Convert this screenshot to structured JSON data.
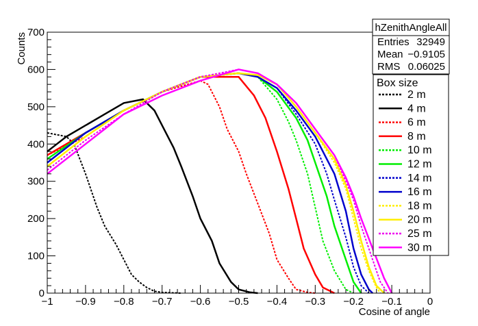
{
  "chart_data": {
    "type": "line",
    "title": "",
    "xlabel": "Cosine of angle",
    "ylabel": "Counts",
    "xlim": [
      -1,
      0
    ],
    "ylim": [
      0,
      700
    ],
    "x_ticks": [
      "-1",
      "-0.9",
      "-0.8",
      "-0.7",
      "-0.6",
      "-0.5",
      "-0.4",
      "-0.3",
      "-0.2",
      "-0.1",
      "0"
    ],
    "y_ticks": [
      "0",
      "100",
      "200",
      "300",
      "400",
      "500",
      "600",
      "700"
    ],
    "grid": false,
    "stats_box": {
      "title": "hZenithAngleAll",
      "rows": [
        {
          "label": "Entries",
          "value": "32949"
        },
        {
          "label": "Mean",
          "value": "−0.9105"
        },
        {
          "label": "RMS",
          "value": "0.06025"
        }
      ]
    },
    "legend": {
      "title": "Box size",
      "placement": "right"
    },
    "series": [
      {
        "name": "2 m",
        "color": "#000000",
        "dash": true,
        "x": [
          -1.0,
          -0.95,
          -0.93,
          -0.9,
          -0.87,
          -0.85,
          -0.82,
          -0.8,
          -0.78,
          -0.76,
          -0.74,
          -0.72,
          -0.7,
          -0.65
        ],
        "values": [
          430,
          420,
          400,
          320,
          230,
          180,
          130,
          90,
          50,
          30,
          15,
          5,
          2,
          0
        ]
      },
      {
        "name": "4 m",
        "color": "#000000",
        "dash": false,
        "x": [
          -1.0,
          -0.95,
          -0.9,
          -0.85,
          -0.8,
          -0.75,
          -0.72,
          -0.7,
          -0.67,
          -0.65,
          -0.62,
          -0.6,
          -0.57,
          -0.55,
          -0.52,
          -0.5,
          -0.47,
          -0.45
        ],
        "values": [
          380,
          420,
          450,
          480,
          510,
          520,
          490,
          450,
          390,
          340,
          260,
          200,
          140,
          80,
          30,
          10,
          2,
          0
        ]
      },
      {
        "name": "6 m",
        "color": "#ff0000",
        "dash": true,
        "x": [
          -1.0,
          -0.9,
          -0.8,
          -0.7,
          -0.6,
          -0.58,
          -0.55,
          -0.53,
          -0.5,
          -0.48,
          -0.45,
          -0.42,
          -0.4,
          -0.37,
          -0.35,
          -0.32,
          -0.3
        ],
        "values": [
          370,
          420,
          490,
          540,
          570,
          560,
          500,
          440,
          380,
          320,
          240,
          160,
          90,
          40,
          10,
          2,
          0
        ]
      },
      {
        "name": "8 m",
        "color": "#ff0000",
        "dash": false,
        "x": [
          -1.0,
          -0.9,
          -0.8,
          -0.7,
          -0.6,
          -0.5,
          -0.46,
          -0.43,
          -0.4,
          -0.37,
          -0.35,
          -0.33,
          -0.3,
          -0.28,
          -0.25
        ],
        "values": [
          370,
          430,
          490,
          540,
          580,
          580,
          530,
          470,
          380,
          280,
          200,
          120,
          50,
          15,
          0
        ]
      },
      {
        "name": "10 m",
        "color": "#00ee00",
        "dash": true,
        "x": [
          -1.0,
          -0.9,
          -0.8,
          -0.7,
          -0.6,
          -0.5,
          -0.45,
          -0.4,
          -0.37,
          -0.35,
          -0.32,
          -0.3,
          -0.28,
          -0.25,
          -0.22,
          -0.2
        ],
        "values": [
          360,
          430,
          490,
          540,
          580,
          590,
          580,
          520,
          460,
          410,
          320,
          230,
          140,
          60,
          10,
          0
        ]
      },
      {
        "name": "12 m",
        "color": "#00ee00",
        "dash": false,
        "x": [
          -1.0,
          -0.9,
          -0.8,
          -0.7,
          -0.6,
          -0.5,
          -0.45,
          -0.4,
          -0.35,
          -0.32,
          -0.3,
          -0.27,
          -0.25,
          -0.22,
          -0.2,
          -0.18
        ],
        "values": [
          360,
          430,
          490,
          540,
          580,
          590,
          580,
          540,
          470,
          410,
          350,
          260,
          180,
          90,
          30,
          0
        ]
      },
      {
        "name": "14 m",
        "color": "#0000cc",
        "dash": true,
        "x": [
          -1.0,
          -0.9,
          -0.8,
          -0.7,
          -0.6,
          -0.5,
          -0.45,
          -0.4,
          -0.35,
          -0.3,
          -0.27,
          -0.25,
          -0.22,
          -0.2,
          -0.18,
          -0.16
        ],
        "values": [
          350,
          430,
          490,
          540,
          580,
          590,
          580,
          550,
          480,
          400,
          320,
          250,
          150,
          70,
          20,
          0
        ]
      },
      {
        "name": "16 m",
        "color": "#0000cc",
        "dash": false,
        "x": [
          -1.0,
          -0.9,
          -0.8,
          -0.7,
          -0.6,
          -0.5,
          -0.45,
          -0.4,
          -0.35,
          -0.3,
          -0.25,
          -0.22,
          -0.2,
          -0.18,
          -0.16,
          -0.15
        ],
        "values": [
          350,
          430,
          490,
          540,
          580,
          590,
          580,
          550,
          490,
          420,
          320,
          220,
          120,
          50,
          10,
          0
        ]
      },
      {
        "name": "18 m",
        "color": "#ffee00",
        "dash": true,
        "x": [
          -1.0,
          -0.9,
          -0.8,
          -0.7,
          -0.6,
          -0.5,
          -0.45,
          -0.4,
          -0.35,
          -0.3,
          -0.25,
          -0.22,
          -0.2,
          -0.18,
          -0.16,
          -0.14,
          -0.13
        ],
        "values": [
          340,
          420,
          490,
          540,
          580,
          590,
          585,
          560,
          500,
          430,
          350,
          280,
          200,
          120,
          60,
          15,
          0
        ]
      },
      {
        "name": "20 m",
        "color": "#ffee00",
        "dash": false,
        "x": [
          -1.0,
          -0.9,
          -0.8,
          -0.7,
          -0.6,
          -0.5,
          -0.45,
          -0.4,
          -0.35,
          -0.3,
          -0.25,
          -0.22,
          -0.2,
          -0.18,
          -0.16,
          -0.14,
          -0.12
        ],
        "values": [
          340,
          420,
          490,
          540,
          580,
          590,
          585,
          560,
          500,
          430,
          360,
          290,
          220,
          140,
          70,
          20,
          0
        ]
      },
      {
        "name": "25 m",
        "color": "#ee00ee",
        "dash": true,
        "x": [
          -1.0,
          -0.9,
          -0.8,
          -0.7,
          -0.6,
          -0.5,
          -0.45,
          -0.4,
          -0.35,
          -0.3,
          -0.25,
          -0.22,
          -0.2,
          -0.18,
          -0.15,
          -0.13,
          -0.11
        ],
        "values": [
          330,
          410,
          480,
          540,
          580,
          600,
          590,
          560,
          510,
          440,
          370,
          300,
          250,
          180,
          90,
          30,
          0
        ]
      },
      {
        "name": "30 m",
        "color": "#ff00ff",
        "dash": false,
        "x": [
          -1.0,
          -0.9,
          -0.8,
          -0.7,
          -0.6,
          -0.5,
          -0.45,
          -0.4,
          -0.35,
          -0.3,
          -0.25,
          -0.22,
          -0.2,
          -0.18,
          -0.15,
          -0.12,
          -0.1
        ],
        "values": [
          320,
          400,
          480,
          530,
          570,
          600,
          590,
          560,
          510,
          440,
          370,
          310,
          260,
          200,
          120,
          40,
          0
        ]
      }
    ]
  }
}
